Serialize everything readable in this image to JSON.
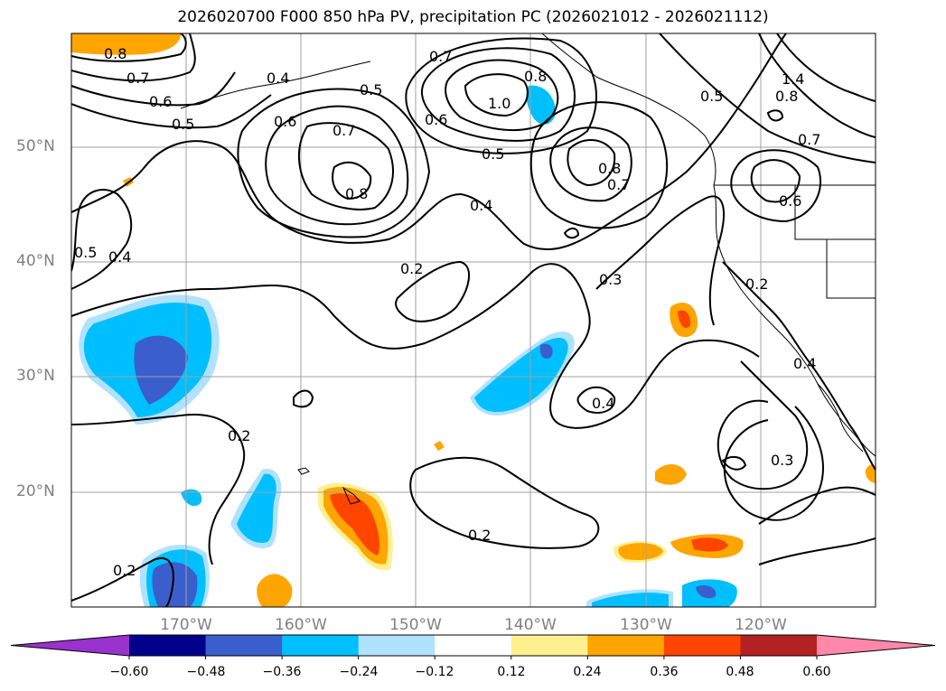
{
  "title": "2026020700 F000 850 hPa PV, precipitation PC (2026021012 - 2026021112)",
  "map": {
    "lat_labels": [
      "50°N",
      "40°N",
      "30°N",
      "20°N"
    ],
    "lon_labels": [
      "170°W",
      "160°W",
      "150°W",
      "140°W",
      "130°W",
      "120°W"
    ],
    "contour_labels": [
      "0.8",
      "0.7",
      "0.6",
      "0.5",
      "0.4",
      "0.5",
      "0.7",
      "0.6",
      "1.0",
      "0.8",
      "0.6",
      "0.7",
      "0.8",
      "0.5",
      "0.4",
      "0.8",
      "0.7",
      "0.5",
      "1.4",
      "0.8",
      "0.7",
      "0.6",
      "0.5",
      "0.4",
      "0.2",
      "0.3",
      "0.2",
      "0.4",
      "0.4",
      "0.3",
      "0.2",
      "0.2",
      "0.2"
    ]
  },
  "colorbar": {
    "ticks": [
      "−0.60",
      "−0.48",
      "−0.36",
      "−0.24",
      "−0.12",
      "0.12",
      "0.24",
      "0.36",
      "0.48",
      "0.60"
    ],
    "colors": [
      "#9a32cd",
      "#00008b",
      "#3a5fcd",
      "#00bfff",
      "#b0e2ff",
      "#ffffff",
      "#fff08f",
      "#ffa500",
      "#ff4500",
      "#b22222",
      "#ff88aa"
    ]
  }
}
